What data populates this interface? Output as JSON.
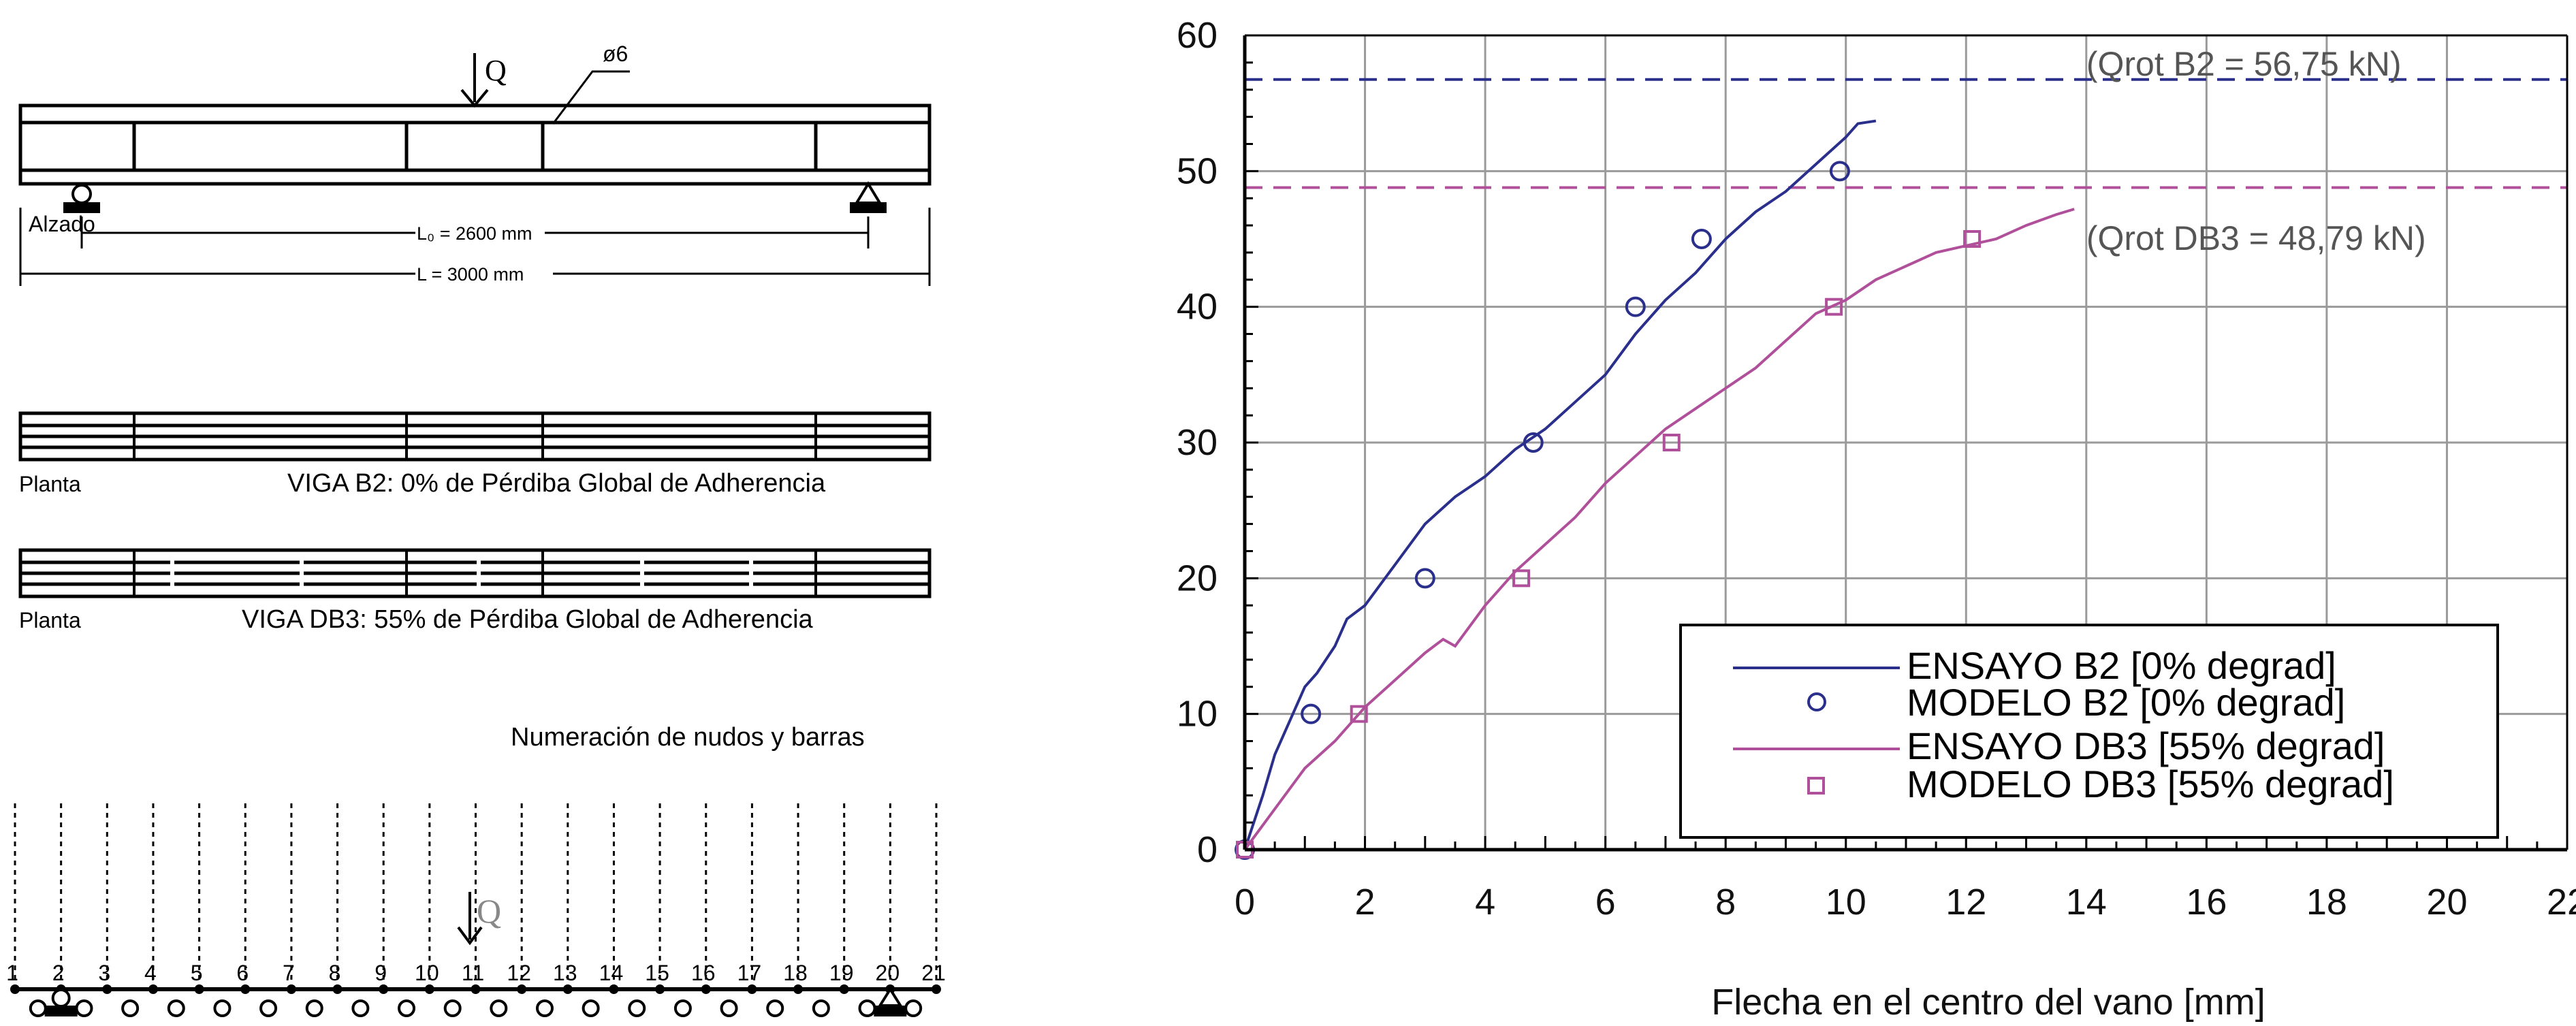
{
  "left": {
    "load_label": "Q",
    "bar_label": "ø6",
    "elevation_label": "Alzado",
    "l0_label": "L₀ = 2600 mm",
    "l_label": "L  = 3000 mm",
    "plan1_label": "Planta",
    "plan1_caption": "VIGA B2: 0% de Pérdiba Global de Adherencia",
    "plan2_label": "Planta",
    "plan2_caption": "VIGA DB3: 55% de Pérdiba Global de Adherencia",
    "mesh_title": "Numeración de nudos y barras",
    "mesh_load_label": "Q",
    "node_numbers": [
      "1",
      "2",
      "3",
      "4",
      "5",
      "6",
      "7",
      "8",
      "9",
      "10",
      "11",
      "12",
      "13",
      "14",
      "15",
      "16",
      "17",
      "18",
      "19",
      "20",
      "21"
    ]
  },
  "chart_data": {
    "type": "line",
    "xlabel": "Flecha en el centro del vano [mm]",
    "ylabel": "",
    "xlim": [
      0,
      22
    ],
    "ylim": [
      0,
      60
    ],
    "x_ticks": [
      "0",
      "2",
      "4",
      "6",
      "8",
      "10",
      "12",
      "14",
      "16",
      "18",
      "20",
      "22"
    ],
    "y_ticks": [
      "0",
      "10",
      "20",
      "30",
      "40",
      "50",
      "60"
    ],
    "grid": true,
    "legend_position": "bottom-right",
    "annotations": [
      {
        "text": "(Qrot B2 = 56,75 kN)",
        "y": 56.75,
        "color": "#2b2f8c"
      },
      {
        "text": "(Qrot DB3 = 48,79  kN)",
        "y": 48.79,
        "color": "#b0509b"
      }
    ],
    "series": [
      {
        "name": "ENSAYO B2 [0% degrad]",
        "kind": "line",
        "color": "#2b2f8c",
        "x": [
          0,
          0.3,
          0.5,
          0.8,
          1.0,
          1.2,
          1.5,
          1.7,
          2.0,
          2.5,
          3.0,
          3.5,
          4.0,
          4.5,
          5.0,
          5.5,
          6.0,
          6.5,
          7.0,
          7.5,
          8.0,
          8.5,
          9.0,
          9.5,
          10.0,
          10.2,
          10.5
        ],
        "y": [
          0,
          4,
          7,
          10,
          12,
          13,
          15,
          17,
          18,
          21,
          24,
          26,
          27.5,
          29.5,
          31,
          33,
          35,
          38,
          40.5,
          42.5,
          45,
          47,
          48.5,
          50.5,
          52.5,
          53.5,
          53.7
        ]
      },
      {
        "name": "MODELO B2 [0% degrad]",
        "kind": "points",
        "marker": "circle",
        "color": "#2b2f8c",
        "x": [
          0,
          1.1,
          3.0,
          4.8,
          6.5,
          7.6,
          9.9
        ],
        "y": [
          0,
          10,
          20,
          30,
          40,
          45,
          50
        ]
      },
      {
        "name": "ENSAYO DB3 [55% degrad]",
        "kind": "line",
        "color": "#b0509b",
        "x": [
          0,
          0.5,
          1.0,
          1.5,
          2.0,
          2.5,
          3.0,
          3.3,
          3.5,
          4.0,
          4.5,
          5.0,
          5.5,
          6.0,
          6.5,
          7.0,
          7.5,
          8.0,
          8.5,
          9.0,
          9.5,
          10.0,
          10.5,
          11.0,
          11.5,
          12.0,
          12.5,
          13.0,
          13.5,
          13.8
        ],
        "y": [
          0,
          3,
          6,
          8,
          10.5,
          12.5,
          14.5,
          15.5,
          15,
          18,
          20.5,
          22.5,
          24.5,
          27,
          29,
          31,
          32.5,
          34,
          35.5,
          37.5,
          39.5,
          40.5,
          42,
          43,
          44,
          44.5,
          45,
          46,
          46.8,
          47.2
        ]
      },
      {
        "name": "MODELO DB3 [55% degrad]",
        "kind": "points",
        "marker": "square",
        "color": "#b0509b",
        "x": [
          0,
          1.9,
          4.6,
          7.1,
          9.8,
          12.1
        ],
        "y": [
          0,
          10,
          20,
          30,
          40,
          45
        ]
      }
    ]
  }
}
